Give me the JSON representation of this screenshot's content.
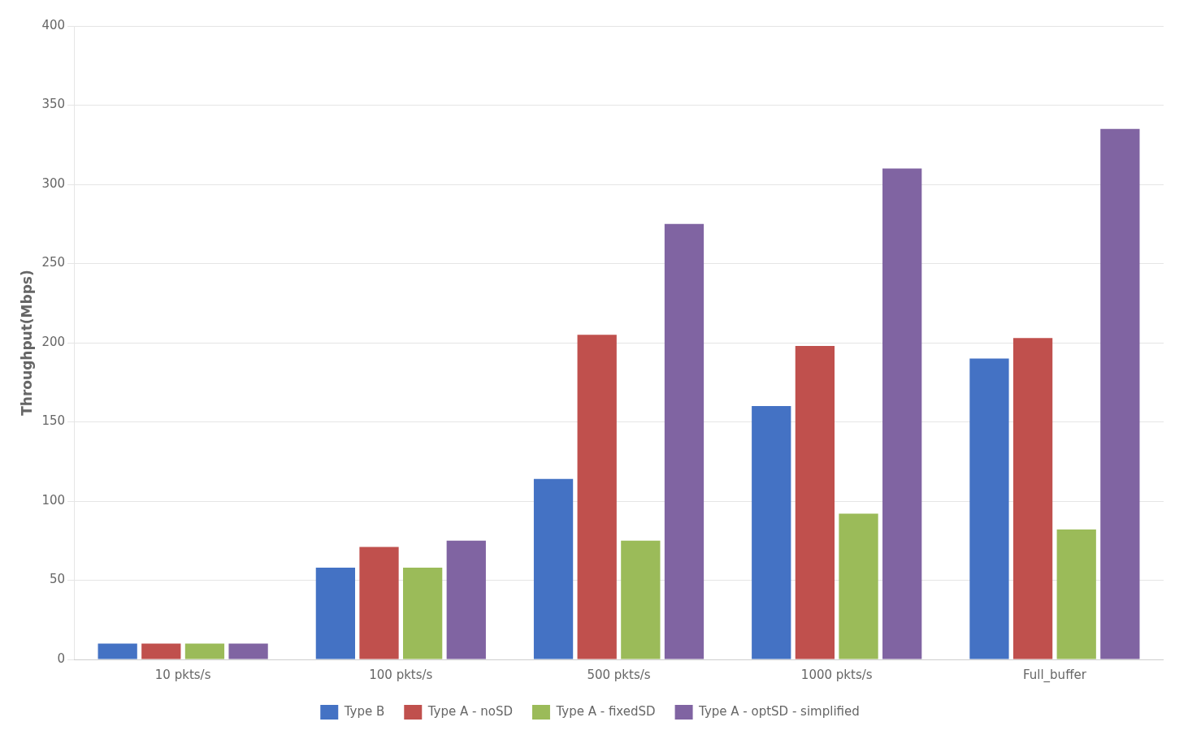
{
  "chart_data": {
    "type": "bar",
    "ylabel": "Throughput(Mbps)",
    "categories": [
      "10 pkts/s",
      "100 pkts/s",
      "500 pkts/s",
      "1000 pkts/s",
      "Full_buffer"
    ],
    "series": [
      {
        "name": "Type B",
        "color": "#4472C4",
        "values": [
          10,
          58,
          114,
          160,
          190
        ]
      },
      {
        "name": "Type A - noSD",
        "color": "#C0504D",
        "values": [
          10,
          71,
          205,
          198,
          203
        ]
      },
      {
        "name": "Type A - fixedSD",
        "color": "#9BBB59",
        "values": [
          10,
          58,
          75,
          92,
          82
        ]
      },
      {
        "name": "Type A - optSD - simplified",
        "color": "#8064A2",
        "values": [
          10,
          75,
          275,
          310,
          335
        ]
      }
    ],
    "ylim": [
      0,
      400
    ],
    "yticks": [
      0,
      50,
      100,
      150,
      200,
      250,
      300,
      350,
      400
    ],
    "grid": true,
    "legend": "bottom"
  }
}
